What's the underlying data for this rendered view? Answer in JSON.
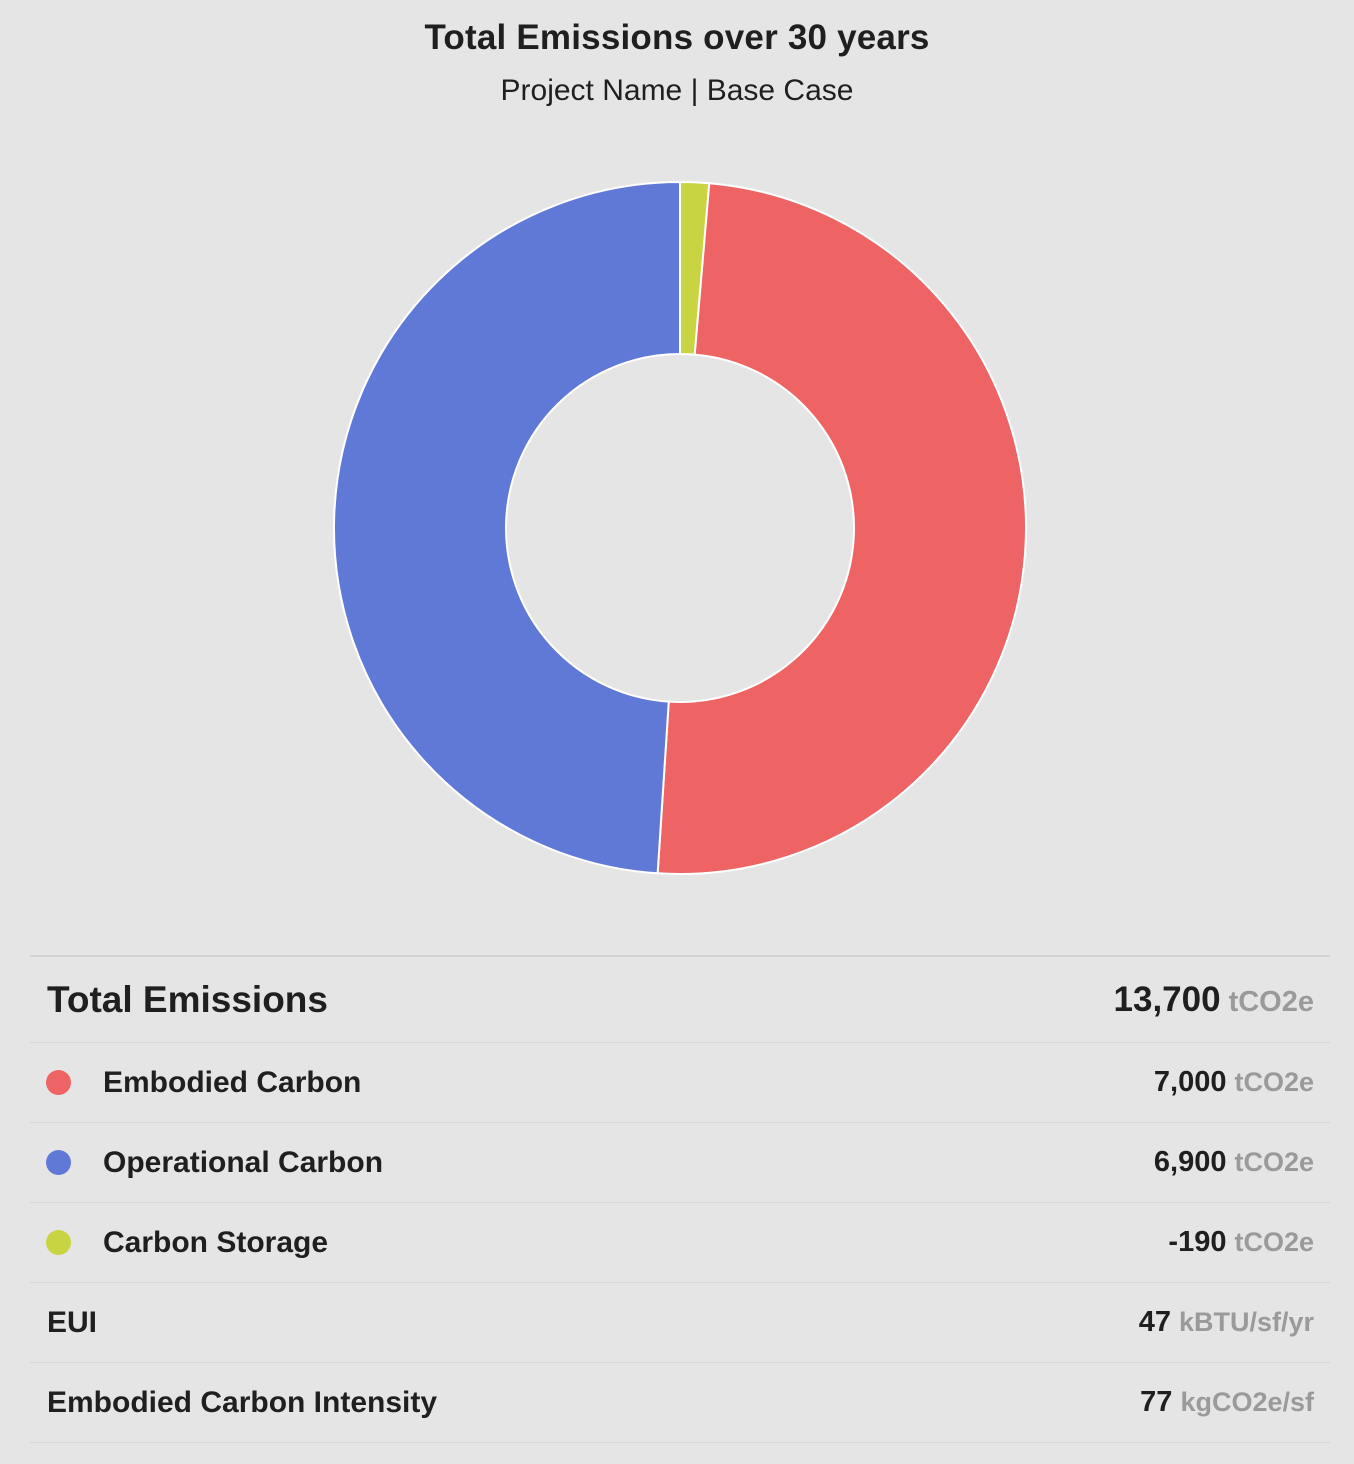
{
  "title": "Total Emissions over 30 years",
  "subtitle": "Project Name | Base Case",
  "chart_data": {
    "type": "pie",
    "variant": "donut",
    "categories": [
      "Carbon Storage",
      "Embodied Carbon",
      "Operational Carbon"
    ],
    "values": [
      190,
      7000,
      6900
    ],
    "colors": [
      "#c8d441",
      "#ee6363",
      "#6179d6"
    ]
  },
  "summary": {
    "total": {
      "label": "Total Emissions",
      "value": "13,700",
      "unit": "tCO2e"
    },
    "items": [
      {
        "label": "Embodied Carbon",
        "value": "7,000",
        "unit": "tCO2e",
        "color": "#ee6363"
      },
      {
        "label": "Operational Carbon",
        "value": "6,900",
        "unit": "tCO2e",
        "color": "#6179d6"
      },
      {
        "label": "Carbon Storage",
        "value": "-190",
        "unit": "tCO2e",
        "color": "#c8d441"
      }
    ],
    "metrics": [
      {
        "label": "EUI",
        "value": "47",
        "unit": "kBTU/sf/yr"
      },
      {
        "label": "Embodied Carbon Intensity",
        "value": "77",
        "unit": "kgCO2e/sf"
      }
    ]
  }
}
